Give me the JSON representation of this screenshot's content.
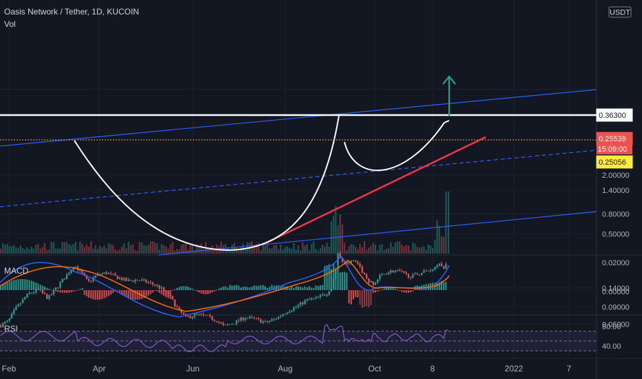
{
  "header": {
    "title": "Oasis Network / Tether, 1D, KUCOIN",
    "vol_label": "Vol"
  },
  "colors": {
    "background": "#131722",
    "up": "#26a69a",
    "down": "#ef5350",
    "channel": "#2962ff",
    "trendline": "#f23645",
    "resistance": "#ffffff",
    "support_dotted": "#f9a825",
    "arrow": "#26a69a",
    "macd_line": "#2962ff",
    "signal_line": "#ff6d00",
    "rsi_line": "#7e57c2"
  },
  "chart_data": {
    "type": "candlestick",
    "symbol": "Oasis Network / Tether",
    "interval": "1D",
    "exchange": "KUCOIN",
    "currency_label": "USDT",
    "scale": "log",
    "price_axis": [
      "2.00000",
      "1.40000",
      "0.80000",
      "0.50000",
      "0.36300",
      "0.25539",
      "15:09:00",
      "0.25056",
      "0.14000",
      "0.09000",
      "0.06000"
    ],
    "time_axis": [
      "Feb",
      "Apr",
      "Jun",
      "Aug",
      "Oct",
      "8",
      "2022",
      "7"
    ],
    "price_tags": {
      "resistance": "0.36300",
      "last": "0.25539",
      "countdown": "15:09:00",
      "support": "0.25056"
    },
    "macd": {
      "label": "MACD",
      "axis": [
        "0.02000",
        "0.00000"
      ]
    },
    "rsi": {
      "label": "RSI",
      "axis": [
        "80.00",
        "40.00"
      ]
    },
    "drawings": [
      "rising channel",
      "cup and handle",
      "rising trendline",
      "horizontal resistance",
      "breakout arrow"
    ]
  }
}
